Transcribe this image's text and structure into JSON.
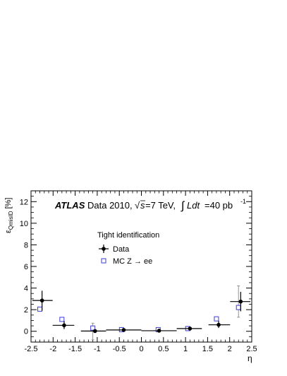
{
  "chart_data": {
    "type": "scatter",
    "experiment": "ATLAS",
    "data_period": "Data 2010,",
    "energy_sqrt": "s",
    "energy_value": "=7 TeV,",
    "lumi_integral": "Ldt",
    "lumi_value": "=40 pb",
    "lumi_exp": "-1",
    "ylabel_main": "ε",
    "ylabel_sub": "QmisID",
    "ylabel_unit": "[%]",
    "xlabel": "η",
    "legend_title": "Tight identification",
    "legend_placement": "center",
    "xlim": [
      -2.5,
      2.5
    ],
    "ylim": [
      -1,
      13
    ],
    "xticks": [
      -2.5,
      -2,
      -1.5,
      -1,
      -0.5,
      0,
      0.5,
      1,
      1.5,
      2,
      2.5
    ],
    "xtick_labels": [
      "-2.5",
      "-2",
      "-1.5",
      "-1",
      "-0.5",
      "0",
      "0.5",
      "1",
      "1.5",
      "2",
      "2.5"
    ],
    "yticks": [
      0,
      2,
      4,
      6,
      8,
      10,
      12
    ],
    "ytick_labels": [
      "0",
      "2",
      "4",
      "6",
      "8",
      "10",
      "12"
    ],
    "grid": false,
    "series": [
      {
        "name": "Data",
        "marker": "filled-circle",
        "color": "#000000",
        "points": [
          {
            "x": -2.25,
            "xlo": -2.47,
            "xhi": -2.01,
            "y": 2.85,
            "ylo": 1.9,
            "yhi": 3.75
          },
          {
            "x": -1.75,
            "xlo": -2.01,
            "xhi": -1.52,
            "y": 0.55,
            "ylo": 0.2,
            "yhi": 0.95
          },
          {
            "x": -1.05,
            "xlo": -1.37,
            "xhi": -0.8,
            "y": 0.02,
            "ylo": -0.15,
            "yhi": 0.2
          },
          {
            "x": -0.4,
            "xlo": -0.8,
            "xhi": 0.0,
            "y": 0.12,
            "ylo": 0.08,
            "yhi": 0.16
          },
          {
            "x": 0.4,
            "xlo": 0.0,
            "xhi": 0.8,
            "y": 0.05,
            "ylo": 0.01,
            "yhi": 0.09
          },
          {
            "x": 1.1,
            "xlo": 0.8,
            "xhi": 1.37,
            "y": 0.25,
            "ylo": 0.12,
            "yhi": 0.38
          },
          {
            "x": 1.75,
            "xlo": 1.52,
            "xhi": 2.01,
            "y": 0.6,
            "ylo": 0.3,
            "yhi": 0.95
          },
          {
            "x": 2.25,
            "xlo": 2.01,
            "xhi": 2.47,
            "y": 2.75,
            "ylo": 1.85,
            "yhi": 3.65
          }
        ]
      },
      {
        "name": "MC Z → ee",
        "marker": "open-square",
        "color": "#3b3bd6",
        "points": [
          {
            "x": -2.3,
            "y": 2.05,
            "ylo": 1.95,
            "yhi": 2.15
          },
          {
            "x": -1.8,
            "y": 1.1,
            "ylo": 1.0,
            "yhi": 1.2
          },
          {
            "x": -1.1,
            "y": 0.3,
            "ylo": -0.8,
            "yhi": 0.75
          },
          {
            "x": -0.45,
            "y": 0.15,
            "ylo": 0.1,
            "yhi": 0.2
          },
          {
            "x": 0.38,
            "y": 0.15,
            "ylo": 0.1,
            "yhi": 0.2
          },
          {
            "x": 1.05,
            "y": 0.25,
            "ylo": 0.2,
            "yhi": 0.3
          },
          {
            "x": 1.7,
            "y": 1.15,
            "ylo": 1.05,
            "yhi": 1.25
          },
          {
            "x": 2.2,
            "y": 2.2,
            "ylo": 1.3,
            "yhi": 4.2
          }
        ]
      }
    ]
  }
}
